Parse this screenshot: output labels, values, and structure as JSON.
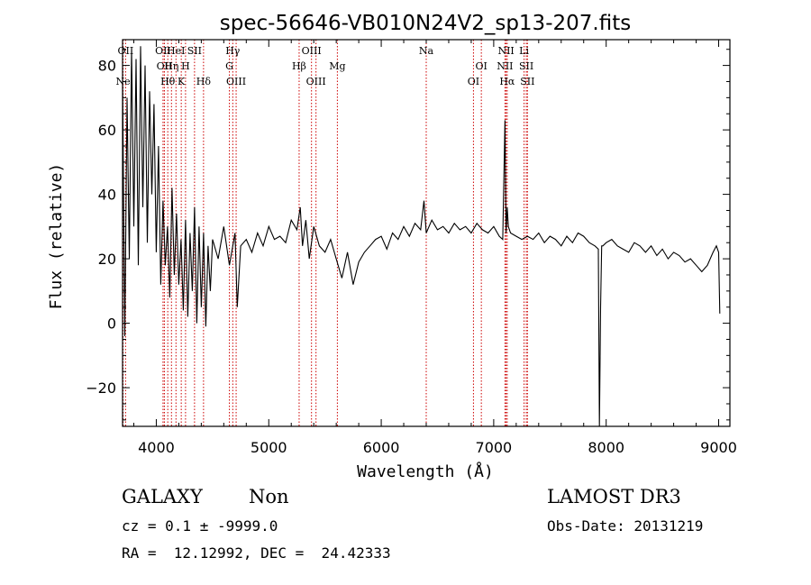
{
  "chart_data": {
    "type": "line",
    "title": "spec-56646-VB010N24V2_sp13-207.fits",
    "xlabel": "Wavelength (Å)",
    "ylabel": "Flux (relative)",
    "xlim": [
      3700,
      9100
    ],
    "ylim": [
      -32,
      88
    ],
    "x_ticks": [
      4000,
      5000,
      6000,
      7000,
      8000,
      9000
    ],
    "y_ticks": [
      -20,
      0,
      20,
      40,
      60,
      80
    ],
    "line_color": "#000000",
    "marker_color": "#cc0000",
    "spectrum": {
      "x": [
        3700,
        3720,
        3740,
        3760,
        3780,
        3800,
        3820,
        3840,
        3860,
        3880,
        3900,
        3920,
        3940,
        3960,
        3980,
        4000,
        4020,
        4040,
        4060,
        4080,
        4100,
        4120,
        4140,
        4160,
        4180,
        4200,
        4220,
        4240,
        4260,
        4280,
        4300,
        4320,
        4340,
        4360,
        4380,
        4400,
        4420,
        4440,
        4460,
        4480,
        4500,
        4550,
        4600,
        4650,
        4700,
        4720,
        4750,
        4800,
        4850,
        4900,
        4950,
        5000,
        5050,
        5100,
        5150,
        5200,
        5250,
        5280,
        5300,
        5330,
        5360,
        5400,
        5450,
        5500,
        5550,
        5600,
        5650,
        5700,
        5750,
        5800,
        5850,
        5900,
        5950,
        6000,
        6050,
        6100,
        6150,
        6200,
        6250,
        6300,
        6350,
        6380,
        6400,
        6450,
        6500,
        6550,
        6600,
        6650,
        6700,
        6750,
        6800,
        6850,
        6900,
        6950,
        7000,
        7050,
        7080,
        7100,
        7110,
        7120,
        7130,
        7150,
        7200,
        7250,
        7300,
        7350,
        7400,
        7450,
        7500,
        7550,
        7600,
        7650,
        7700,
        7750,
        7800,
        7850,
        7900,
        7930,
        7940,
        7950,
        7960,
        7970,
        8000,
        8050,
        8100,
        8150,
        8200,
        8250,
        8300,
        8350,
        8400,
        8450,
        8500,
        8550,
        8600,
        8650,
        8700,
        8750,
        8800,
        8850,
        8900,
        8950,
        8980,
        9000,
        9010
      ],
      "y": [
        75,
        -4,
        70,
        20,
        85,
        30,
        82,
        18,
        86,
        36,
        80,
        25,
        72,
        40,
        68,
        22,
        55,
        12,
        38,
        18,
        30,
        8,
        42,
        15,
        34,
        12,
        26,
        4,
        32,
        2,
        28,
        10,
        36,
        0,
        30,
        5,
        28,
        -1,
        24,
        10,
        26,
        20,
        30,
        18,
        28,
        5,
        24,
        26,
        22,
        28,
        24,
        30,
        26,
        27,
        25,
        32,
        29,
        36,
        24,
        32,
        20,
        30,
        24,
        22,
        26,
        20,
        14,
        22,
        12,
        19,
        22,
        24,
        26,
        27,
        23,
        28,
        26,
        30,
        27,
        31,
        29,
        38,
        28,
        32,
        29,
        30,
        28,
        31,
        29,
        30,
        28,
        31,
        29,
        28,
        30,
        27,
        26,
        63,
        28,
        36,
        30,
        28,
        27,
        26,
        27,
        26,
        28,
        25,
        27,
        26,
        24,
        27,
        25,
        28,
        27,
        25,
        24,
        23,
        -32,
        5,
        24,
        24,
        25,
        26,
        24,
        23,
        22,
        25,
        24,
        22,
        24,
        21,
        23,
        20,
        22,
        21,
        19,
        20,
        18,
        16,
        18,
        22,
        24,
        22,
        3
      ]
    },
    "lines": [
      {
        "label": "Ne",
        "x": 3705,
        "row": 2
      },
      {
        "label": "OII",
        "x": 3727,
        "row": 0
      },
      {
        "label": "OII",
        "x": 4060,
        "row": 0
      },
      {
        "label": "OII",
        "x": 4072,
        "row": 1
      },
      {
        "label": "Hθ",
        "x": 4102,
        "row": 2
      },
      {
        "label": "Hη",
        "x": 4135,
        "row": 1
      },
      {
        "label": "HeI",
        "x": 4175,
        "row": 0
      },
      {
        "label": "H",
        "x": 4260,
        "row": 1
      },
      {
        "label": "K",
        "x": 4222,
        "row": 2
      },
      {
        "label": "SII",
        "x": 4340,
        "row": 0
      },
      {
        "label": "Hδ",
        "x": 4420,
        "row": 2
      },
      {
        "label": "Hγ",
        "x": 4680,
        "row": 0
      },
      {
        "label": "G",
        "x": 4650,
        "row": 1
      },
      {
        "label": "OIII",
        "x": 4710,
        "row": 2
      },
      {
        "label": "Hβ",
        "x": 5270,
        "row": 1
      },
      {
        "label": "OIII",
        "x": 5380,
        "row": 0
      },
      {
        "label": "OIII",
        "x": 5420,
        "row": 2
      },
      {
        "label": "Mg",
        "x": 5610,
        "row": 1
      },
      {
        "label": "Na",
        "x": 6400,
        "row": 0
      },
      {
        "label": "OI",
        "x": 6890,
        "row": 1
      },
      {
        "label": "OI",
        "x": 6820,
        "row": 2
      },
      {
        "label": "NII",
        "x": 7110,
        "row": 0
      },
      {
        "label": "NII",
        "x": 7100,
        "row": 1
      },
      {
        "label": "Hα",
        "x": 7120,
        "row": 2
      },
      {
        "label": "Li",
        "x": 7270,
        "row": 0
      },
      {
        "label": "SII",
        "x": 7290,
        "row": 1
      },
      {
        "label": "SII",
        "x": 7300,
        "row": 2
      }
    ]
  },
  "info": {
    "class": "GALAXY",
    "subclass": "Non",
    "survey": "LAMOST DR3",
    "cz": "cz = 0.1 ± -9999.0",
    "obs_date": "Obs-Date: 20131219",
    "radec": "RA =  12.12992, DEC =  24.42333"
  }
}
